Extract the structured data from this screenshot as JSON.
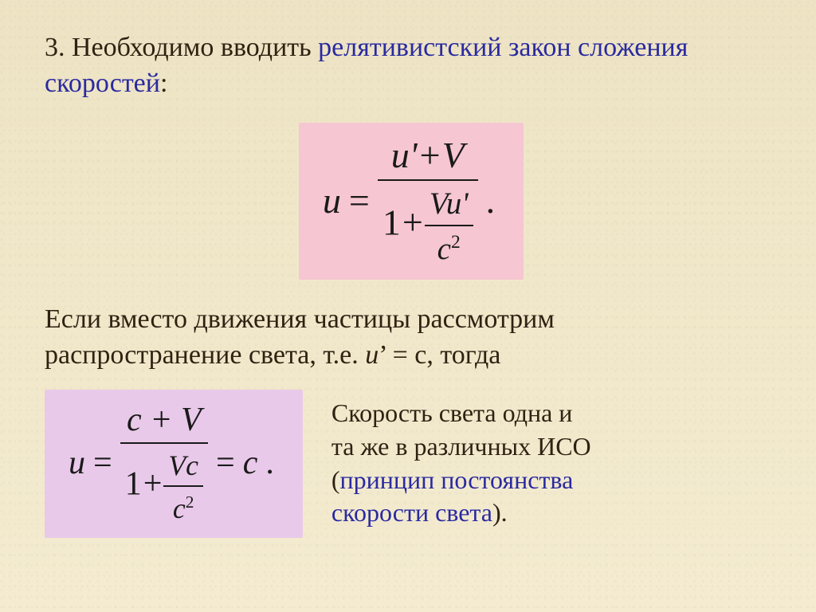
{
  "colors": {
    "background": "#f2e8c8",
    "text": "#2f2212",
    "accent_blue": "#2a2aa0",
    "eq_text": "#1a1a1a",
    "box_pink": "#f6c6d2",
    "box_lilac": "#e9c9e9",
    "fraction_bar": "#1a1a1a"
  },
  "typography": {
    "body_family": "Times New Roman",
    "body_size_pt": 26,
    "eq1_size_pt": 35,
    "eq2_size_pt": 32,
    "side_text_size_pt": 24
  },
  "para1": {
    "number": "3.",
    "lead": " Необходимо вводить ",
    "accent": "релятивистский закон сложения скоростей",
    "tail": ":"
  },
  "eq1": {
    "lhs": "u",
    "eq": " = ",
    "num": "u'+V",
    "den_lead": "1",
    "den_plus": "+",
    "den_frac_num": "Vu'",
    "den_frac_den_base": "c",
    "den_frac_den_exp": "2",
    "tail": "."
  },
  "para2": {
    "line1": "Если вместо движения частицы рассмотрим",
    "line2a": "распространение света, т.е. ",
    "u": "u",
    "prime": "’",
    "line2b": " = с, тогда"
  },
  "eq2": {
    "lhs": "u",
    "eq": " = ",
    "num": "c + V",
    "den_lead": "1",
    "den_plus": "+",
    "den_frac_num": "Vc",
    "den_frac_den_base": "c",
    "den_frac_den_exp": "2",
    "mid": " = ",
    "rhs": "c",
    "tail": "."
  },
  "side": {
    "l1": "Скорость света одна и",
    "l2": "та же в различных ИСО",
    "l3a": "(",
    "l3b": "принцип постоянства",
    "l4": "скорости света",
    "l5": ")."
  }
}
